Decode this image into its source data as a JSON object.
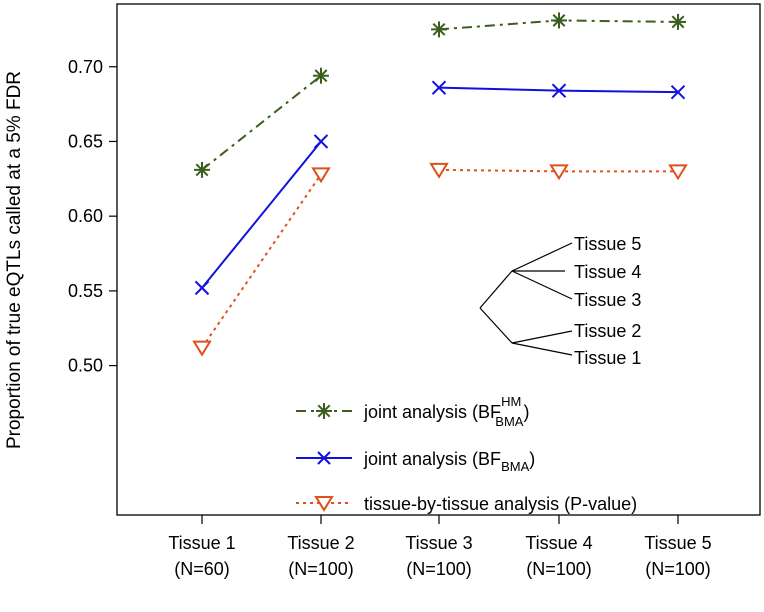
{
  "chart_data": {
    "type": "line",
    "categories": [
      {
        "line1": "Tissue 1",
        "line2": "(N=60)"
      },
      {
        "line1": "Tissue 2",
        "line2": "(N=100)"
      },
      {
        "line1": "Tissue 3",
        "line2": "(N=100)"
      },
      {
        "line1": "Tissue 4",
        "line2": "(N=100)"
      },
      {
        "line1": "Tissue 5",
        "line2": "(N=100)"
      }
    ],
    "ylabel": "Proportion of true eQTLs called at a 5% FDR",
    "yticks": [
      "0.50",
      "0.55",
      "0.60",
      "0.65",
      "0.70"
    ],
    "ylim": [
      0.4,
      0.742
    ],
    "legend_position": "bottom-center",
    "segments": [
      [
        0,
        1
      ],
      [
        2,
        3,
        4
      ]
    ],
    "series": [
      {
        "key": "bf_hm",
        "name_main": "joint analysis (BF",
        "name_sup": "HM",
        "name_sub": "BMA",
        "name_end": ")",
        "values": [
          0.631,
          0.694,
          0.725,
          0.731,
          0.73
        ],
        "color": "#3b5e1e",
        "marker": "asterisk",
        "dash": "10,5,3,5"
      },
      {
        "key": "bf",
        "name_main": "joint analysis (BF",
        "name_sub": "BMA",
        "name_end": ")",
        "values": [
          0.552,
          0.65,
          0.686,
          0.684,
          0.683
        ],
        "color": "#1010e0",
        "marker": "x",
        "dash": ""
      },
      {
        "key": "pval",
        "name_main": "tissue-by-tissue analysis (P-value)",
        "values": [
          0.512,
          0.628,
          0.631,
          0.63,
          0.63
        ],
        "color": "#e0501a",
        "marker": "triangle",
        "dash": "3,4"
      }
    ],
    "tree_labels": [
      "Tissue 5",
      "Tissue 4",
      "Tissue 3",
      "Tissue 2",
      "Tissue 1"
    ]
  }
}
